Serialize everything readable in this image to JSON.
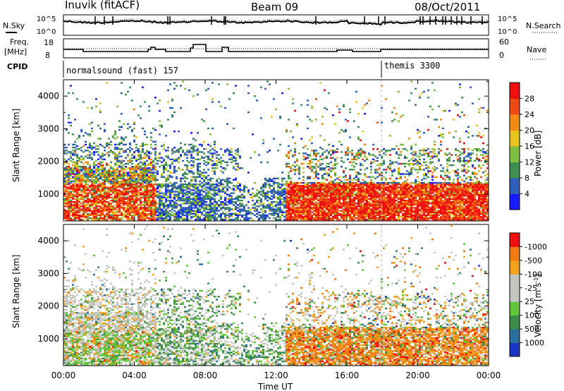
{
  "header": {
    "station": "Inuvik (fitACF)",
    "beam": "Beam 09",
    "date": "08/Oct/2011"
  },
  "summary_panels": {
    "nsky_label": "N.Sky",
    "nsearch_label": "N.Search",
    "noise_ticks_left": [
      "10^5",
      "10^0"
    ],
    "noise_ticks_right": [
      "10^5",
      "10^0"
    ],
    "freq_label": "Freq.",
    "freq_unit": "[MHz]",
    "freq_ticks": [
      "18",
      "8"
    ],
    "nave_label": "Nave",
    "nave_ticks": [
      "60",
      "0"
    ],
    "cpid_label": "CPID",
    "cpid_segments": [
      {
        "label": "normalsound (fast) 157",
        "start_hour": 0
      },
      {
        "label": "themis 3300",
        "start_hour": 18
      }
    ]
  },
  "time_axis": {
    "title": "Time UT",
    "ticks": [
      "00:00",
      "04:00",
      "08:00",
      "12:00",
      "16:00",
      "20:00",
      "00:00"
    ]
  },
  "chart_data": [
    {
      "type": "heatmap",
      "title": "",
      "xlabel": "Time UT",
      "ylabel": "Slant Range [km]",
      "x_range_hours": [
        0,
        24
      ],
      "ylim": [
        180,
        4500
      ],
      "y_ticks": [
        1000,
        2000,
        3000,
        4000
      ],
      "colorbar": {
        "label": "Power [dB]",
        "tick_labels": [
          "4",
          "8",
          "12",
          "16",
          "20",
          "24",
          "28"
        ],
        "colors": [
          "#1a1aff",
          "#2e5dba",
          "#3f8f55",
          "#7fbf3f",
          "#e6c21a",
          "#f28a14",
          "#f04a14",
          "#ee1010"
        ]
      },
      "features": [
        {
          "hours": [
            0,
            5
          ],
          "range_km": [
            600,
            1700
          ],
          "level": "high"
        },
        {
          "hours": [
            12.5,
            24
          ],
          "range_km": [
            450,
            1300
          ],
          "level": "high"
        },
        {
          "hours": [
            6,
            12.5
          ],
          "range_km": [
            200,
            1100
          ],
          "level": "low"
        }
      ]
    },
    {
      "type": "heatmap",
      "title": "",
      "xlabel": "Time UT",
      "ylabel": "Slant Range [km]",
      "x_range_hours": [
        0,
        24
      ],
      "ylim": [
        180,
        4500
      ],
      "y_ticks": [
        1000,
        2000,
        3000,
        4000
      ],
      "colorbar": {
        "label": "Velocity [m s^-1]",
        "tick_labels": [
          "1000",
          "500",
          "100",
          "25",
          "-25",
          "-100",
          "-500",
          "-1000"
        ],
        "colors": [
          "#1b34c4",
          "#2a6e9e",
          "#3d8c4c",
          "#62c43a",
          "#c6c6c0",
          "#c6c6c0",
          "#f2a21c",
          "#f07a14",
          "#ee1010"
        ]
      },
      "features": [
        {
          "hours": [
            0,
            5
          ],
          "range_km": [
            500,
            2500
          ],
          "level": "mixed"
        },
        {
          "hours": [
            12.5,
            24
          ],
          "range_km": [
            500,
            1500
          ],
          "level": "negative"
        }
      ]
    }
  ]
}
